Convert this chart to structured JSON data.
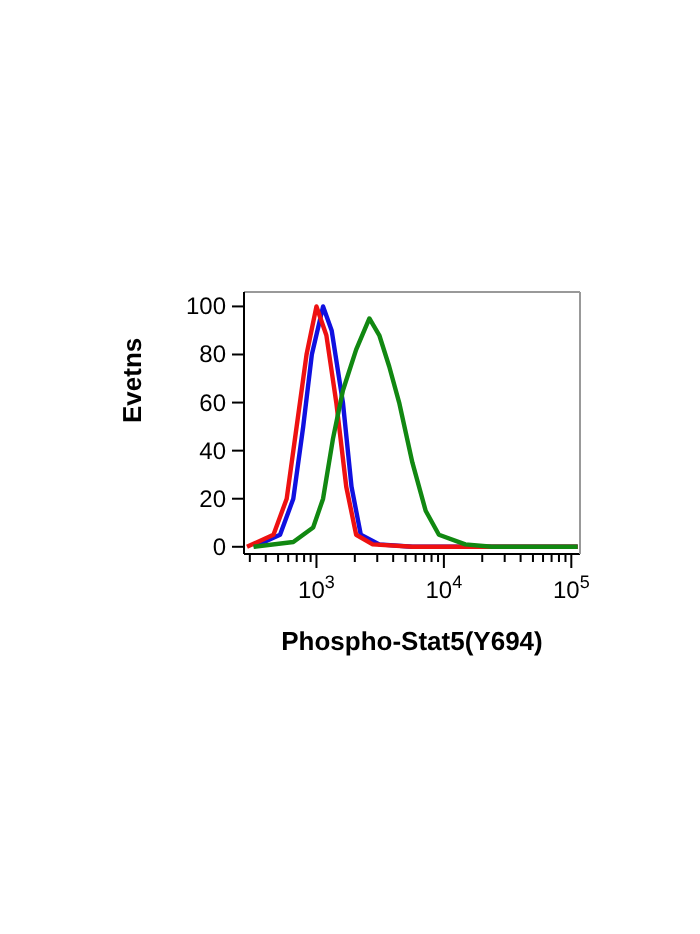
{
  "chart_data": {
    "type": "line",
    "xlabel": "Phospho-Stat5(Y694)",
    "ylabel": "Evetns",
    "log": "x",
    "marker": "none",
    "line_style": "solid",
    "xlim": [
      270,
      117000
    ],
    "ylim": [
      -3,
      106
    ],
    "xticks": [
      {
        "value": 300,
        "label": null
      },
      {
        "value": 400,
        "label": null
      },
      {
        "value": 500,
        "label": null
      },
      {
        "value": 600,
        "label": null
      },
      {
        "value": 700,
        "label": null
      },
      {
        "value": 800,
        "label": null
      },
      {
        "value": 900,
        "label": null
      },
      {
        "value": 1000,
        "label": "10$^{3}$"
      },
      {
        "value": 2000,
        "label": null
      },
      {
        "value": 3000,
        "label": null
      },
      {
        "value": 4000,
        "label": null
      },
      {
        "value": 5000,
        "label": null
      },
      {
        "value": 6000,
        "label": null
      },
      {
        "value": 7000,
        "label": null
      },
      {
        "value": 8000,
        "label": null
      },
      {
        "value": 9000,
        "label": null
      },
      {
        "value": 10000,
        "label": "10$^{4}$"
      },
      {
        "value": 20000,
        "label": null
      },
      {
        "value": 30000,
        "label": null
      },
      {
        "value": 40000,
        "label": null
      },
      {
        "value": 50000,
        "label": null
      },
      {
        "value": 60000,
        "label": null
      },
      {
        "value": 70000,
        "label": null
      },
      {
        "value": 80000,
        "label": null
      },
      {
        "value": 90000,
        "label": null
      },
      {
        "value": 100000,
        "label": "10$^{5}$"
      }
    ],
    "yticks": [
      0,
      20,
      40,
      60,
      80,
      100
    ],
    "series": [
      {
        "color": "#1010e0",
        "x": [
          321,
          518,
          658,
          787,
          920,
          1127,
          1316,
          1613,
          1884,
          2228,
          3113,
          5662,
          112200
        ],
        "values": [
          0,
          5,
          20,
          50,
          80,
          100,
          90,
          60,
          25,
          5,
          1,
          0,
          0
        ]
      },
      {
        "color": "#ee1111",
        "x": [
          285,
          460,
          584,
          699,
          836,
          1000,
          1196,
          1431,
          1713,
          2049,
          2762,
          5662,
          112200
        ],
        "values": [
          0,
          5,
          20,
          50,
          80,
          100,
          88,
          60,
          25,
          5,
          1,
          0,
          0
        ]
      },
      {
        "color": "#118811",
        "x": [
          321,
          658,
          942,
          1127,
          1348,
          1613,
          2049,
          2602,
          3113,
          3724,
          4457,
          5662,
          7194,
          9140,
          14720,
          23770,
          112200
        ],
        "values": [
          0,
          2,
          8,
          20,
          45,
          65,
          82,
          95,
          88,
          75,
          60,
          35,
          15,
          5,
          1,
          0,
          0
        ]
      }
    ]
  }
}
